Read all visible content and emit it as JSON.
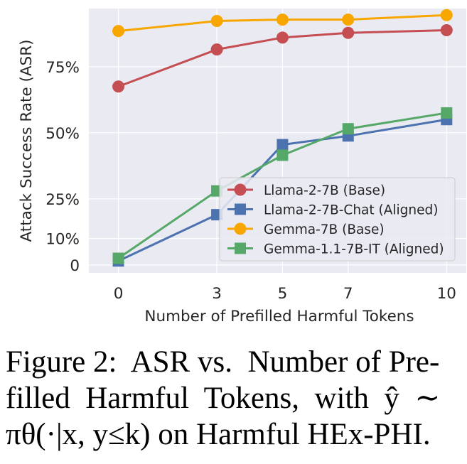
{
  "chart_data": {
    "type": "line",
    "xlabel": "Number of Prefilled Harmful Tokens",
    "ylabel": "Attack Success Rate (ASR)",
    "x": [
      0,
      3,
      5,
      7,
      10
    ],
    "x_ticks": [
      "0",
      "3",
      "5",
      "7",
      "10"
    ],
    "y_ticks": [
      {
        "value": 0,
        "label": "0"
      },
      {
        "value": 10,
        "label": "10%"
      },
      {
        "value": 25,
        "label": "25%"
      },
      {
        "value": 50,
        "label": "50%"
      },
      {
        "value": 75,
        "label": "75%"
      }
    ],
    "xlim": [
      -0.9,
      10.6
    ],
    "ylim": [
      -3,
      97
    ],
    "grid": true,
    "legend_position": "lower-right",
    "series": [
      {
        "name": "Llama-2-7B (Base)",
        "color": "#c44e52",
        "marker": "circle",
        "values": [
          67.5,
          81.5,
          86.0,
          87.8,
          88.8
        ]
      },
      {
        "name": "Llama-2-7B-Chat (Aligned)",
        "color": "#4c72b0",
        "marker": "square",
        "values": [
          1.5,
          19.0,
          45.5,
          48.8,
          55.0
        ]
      },
      {
        "name": "Gemma-7B (Base)",
        "color": "#f8a700",
        "marker": "circle",
        "values": [
          88.5,
          92.3,
          92.8,
          92.8,
          94.5
        ]
      },
      {
        "name": "Gemma-1.1-7B-IT (Aligned)",
        "color": "#55a868",
        "marker": "square",
        "values": [
          2.5,
          28.0,
          41.5,
          51.5,
          57.5
        ]
      }
    ]
  },
  "caption": {
    "lines": [
      "Figure 2:  ASR vs.  Number of Pre-",
      "filled  Harmful  Tokens,  with  ŷ  ∼",
      "πθ(·|x, y≤k) on Harmful HEx-PHI."
    ]
  }
}
